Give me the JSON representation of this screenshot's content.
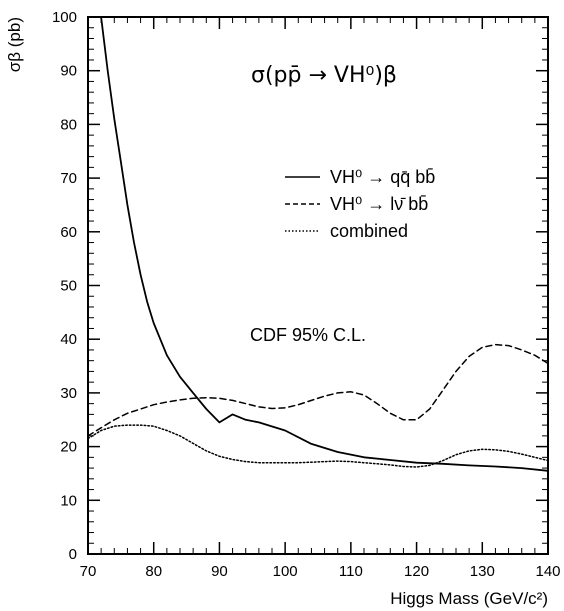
{
  "chart_data": {
    "type": "line",
    "title": "σ(pp̄ → VH⁰)β",
    "xlabel": "Higgs Mass (GeV/c²)",
    "ylabel": "σβ (pb)",
    "xlim": [
      70,
      140
    ],
    "ylim": [
      0,
      100
    ],
    "xticks": [
      70,
      80,
      90,
      100,
      110,
      120,
      130,
      140
    ],
    "yticks": [
      0,
      10,
      20,
      30,
      40,
      50,
      60,
      70,
      80,
      90,
      100
    ],
    "grid": false,
    "legend_position": "right",
    "annotation": "CDF  95% C.L.",
    "series": [
      {
        "name": "VH⁰ → qq̄ bb̄",
        "style": "solid",
        "x": [
          72,
          73,
          74,
          75,
          76,
          77,
          78,
          79,
          80,
          82,
          84,
          86,
          88,
          90,
          92,
          94,
          96,
          100,
          104,
          108,
          112,
          116,
          120,
          124,
          128,
          132,
          136,
          140
        ],
        "y": [
          100,
          90,
          81,
          73,
          65,
          58,
          52,
          47,
          43,
          37,
          33,
          30,
          27,
          24.5,
          26,
          25,
          24.5,
          23,
          20.5,
          19,
          18,
          17.5,
          17,
          16.8,
          16.5,
          16.3,
          16,
          15.5
        ]
      },
      {
        "name": "VH⁰ → lν̄ bb̄",
        "style": "dashed",
        "x": [
          70,
          72,
          74,
          76,
          78,
          80,
          82,
          84,
          86,
          88,
          90,
          92,
          94,
          96,
          98,
          100,
          102,
          104,
          106,
          108,
          110,
          112,
          114,
          116,
          118,
          120,
          122,
          124,
          126,
          128,
          130,
          132,
          134,
          136,
          138,
          140
        ],
        "y": [
          22,
          23.5,
          25,
          26.2,
          27,
          27.8,
          28.3,
          28.7,
          29,
          29.1,
          29,
          28.6,
          28,
          27.4,
          27.1,
          27.2,
          27.8,
          28.6,
          29.4,
          30,
          30.2,
          29.6,
          28,
          26.2,
          25,
          25,
          27,
          30.5,
          34,
          36.8,
          38.5,
          39,
          38.8,
          38,
          37,
          35.5
        ]
      },
      {
        "name": "combined",
        "style": "dotted",
        "x": [
          70,
          72,
          74,
          76,
          78,
          80,
          82,
          84,
          86,
          88,
          90,
          92,
          94,
          96,
          98,
          100,
          102,
          104,
          106,
          108,
          110,
          112,
          114,
          116,
          118,
          120,
          122,
          124,
          126,
          128,
          130,
          132,
          134,
          136,
          138,
          140
        ],
        "y": [
          21.5,
          23,
          23.8,
          24,
          24,
          23.8,
          23,
          22,
          20.6,
          19.2,
          18.2,
          17.6,
          17.2,
          17,
          17,
          17,
          17,
          17.1,
          17.2,
          17.3,
          17.2,
          17,
          16.8,
          16.6,
          16.3,
          16.2,
          16.5,
          17.4,
          18.5,
          19.2,
          19.5,
          19.4,
          19.1,
          18.6,
          18,
          17.4
        ]
      }
    ]
  }
}
